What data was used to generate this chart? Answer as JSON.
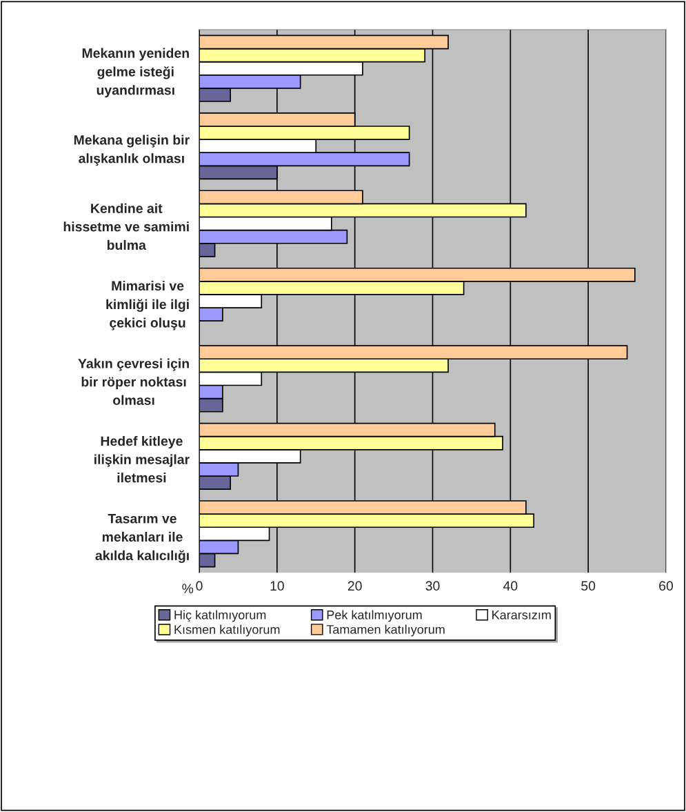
{
  "chart_data": {
    "type": "bar",
    "orientation": "horizontal",
    "xlabel": "%",
    "categories": [
      "Mekanın yeniden gelme isteği uyandırması",
      "Mekana gelişin bir alışkanlık olması",
      "Kendine ait hissetme ve samimi bulma",
      "Mimarisi ve kimliği ile ilgi çekici oluşu",
      "Yakın çevresi için bir röper noktası olması",
      "Hedef kitleye ilişkin mesajlar iletmesi",
      "Tasarım ve mekanları ile akılda kalıcılığı"
    ],
    "series": [
      {
        "name": "Hiç katılmıyorum",
        "color": "#666699",
        "values": [
          4,
          10,
          2,
          null,
          3,
          4,
          2
        ]
      },
      {
        "name": "Pek katılmıyorum",
        "color": "#9999ff",
        "values": [
          13,
          27,
          19,
          3,
          3,
          5,
          5
        ]
      },
      {
        "name": "Kararsızım",
        "color": "#ffffff",
        "values": [
          21,
          15,
          17,
          8,
          8,
          13,
          9
        ]
      },
      {
        "name": "Kısmen katılıyorum",
        "color": "#ffff99",
        "values": [
          29,
          27,
          42,
          34,
          32,
          39,
          43
        ]
      },
      {
        "name": "Tamamen katılıyorum",
        "color": "#ffcc99",
        "values": [
          32,
          20,
          21,
          56,
          55,
          38,
          42
        ]
      }
    ],
    "xlim": [
      0,
      60
    ],
    "xticks": [
      0,
      10,
      20,
      30,
      40,
      50,
      60
    ],
    "grid": "x",
    "legend": "bottom"
  }
}
